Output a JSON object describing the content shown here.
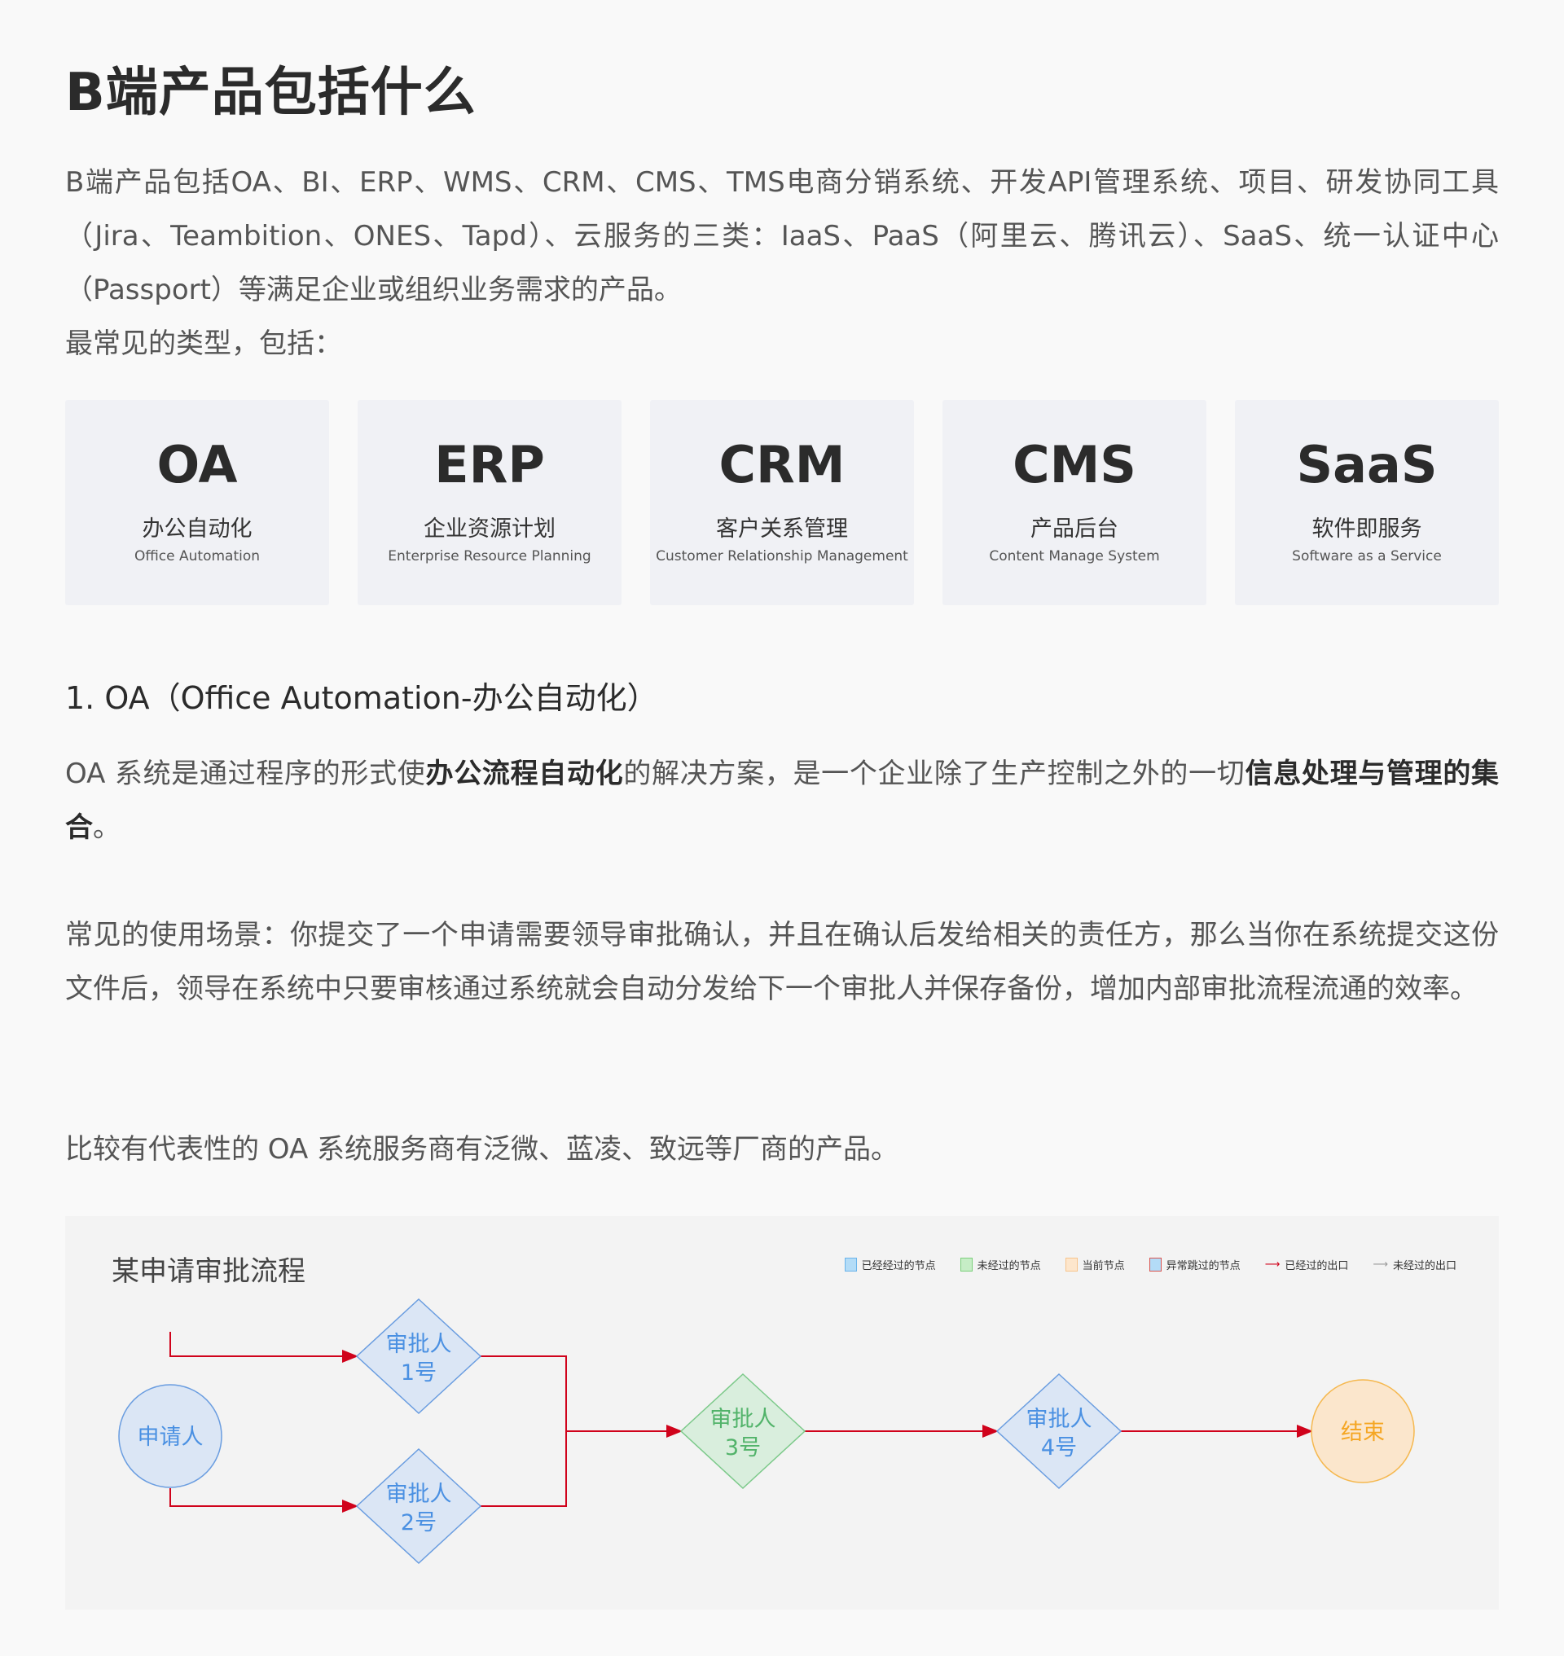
{
  "title": "B端产品包括什么",
  "intro": "B端产品包括OA、BI、ERP、WMS、CRM、CMS、TMS电商分销系统、开发API管理系统、项目、研发协同工具（Jira、Teambition、ONES、Tapd）、云服务的三类：IaaS、PaaS（阿里云、腾讯云）、SaaS、统一认证中心（Passport）等满足企业或组织业务需求的产品。",
  "intro_types": "最常见的类型，包括：",
  "cards": [
    {
      "abbr": "OA",
      "cn": "办公自动化",
      "en": "Office Automation"
    },
    {
      "abbr": "ERP",
      "cn": "企业资源计划",
      "en": "Enterprise Resource Planning"
    },
    {
      "abbr": "CRM",
      "cn": "客户关系管理",
      "en": "Customer Relationship Management"
    },
    {
      "abbr": "CMS",
      "cn": "产品后台",
      "en": "Content Manage System"
    },
    {
      "abbr": "SaaS",
      "cn": "软件即服务",
      "en": "Software as a Service"
    }
  ],
  "section_heading": "1. OA（Office Automation-办公自动化）",
  "oa_desc": [
    {
      "text": "OA  系统是通过程序的形式使",
      "bold": false
    },
    {
      "text": "办公流程自动化",
      "bold": true
    },
    {
      "text": "的解决方案，是一个企业除了生产控制之外的一切",
      "bold": false
    },
    {
      "text": "信息处理与管理的集合",
      "bold": true
    },
    {
      "text": "。",
      "bold": false
    }
  ],
  "scenario": "常见的使用场景：你提交了一个申请需要领导审批确认，并且在确认后发给相关的责任方，那么当你在系统提交这份文件后，领导在系统中只要审核通过系统就会自动分发给下一个审批人并保存备份，增加内部审批流程流通的效率。",
  "vendors": "比较有代表性的 OA 系统服务商有泛微、蓝凌、致远等厂商的产品。",
  "diagram": {
    "title": "某申请审批流程",
    "legend": [
      "已经经过的节点",
      "未经过的节点",
      "当前节点",
      "异常跳过的节点",
      "已经过的出口",
      "未经过的出口"
    ],
    "nodes": {
      "applicant": "申请人",
      "a1_l1": "审批人",
      "a1_l2": "1号",
      "a2_l1": "审批人",
      "a2_l2": "2号",
      "a3_l1": "审批人",
      "a3_l2": "3号",
      "a4_l1": "审批人",
      "a4_l2": "4号",
      "end": "结束"
    },
    "colors": {
      "passed": "#4a90e2",
      "unpassed": "#52b36a",
      "current": "#f5a623",
      "edge_passed": "#d0021b",
      "edge_unpassed": "#999999"
    }
  }
}
